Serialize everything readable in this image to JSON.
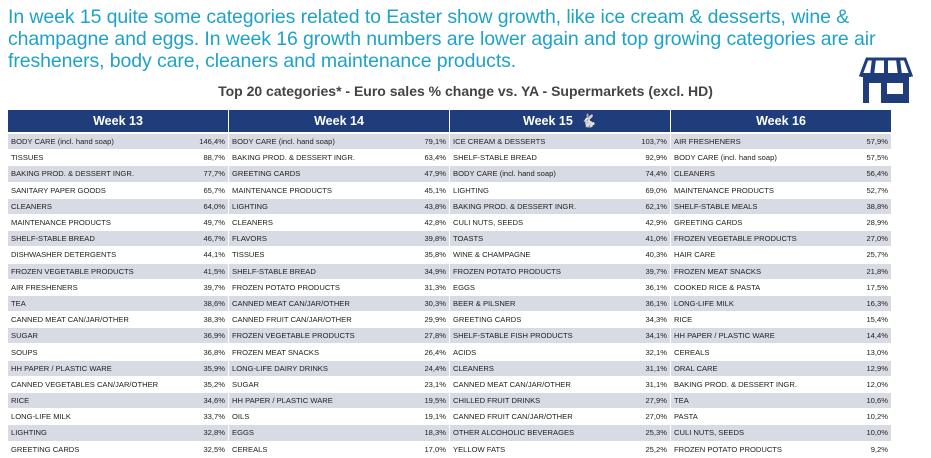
{
  "headline": "In week 15 quite some categories related to Easter show growth, like ice cream & desserts, wine & champagne and eggs. In week 16 growth numbers are lower again and top growing categories are air fresheners, body care, cleaners and maintenance products.",
  "subtitle": "Top 20 categories* - Euro sales % change vs. YA - Supermarkets (excl. HD)",
  "icons": {
    "store": "store-icon",
    "rabbit": "easter-bunny-icon"
  },
  "colors": {
    "headline": "#1ea3c8",
    "header_bg": "#1f3d7a",
    "row_alt": "#d9dbe4"
  },
  "weeks": [
    {
      "label": "Week 13",
      "rows": [
        {
          "category": "BODY CARE (incl. hand soap)",
          "value": "146,4%"
        },
        {
          "category": "TISSUES",
          "value": "88,7%"
        },
        {
          "category": "BAKING PROD. & DESSERT INGR.",
          "value": "77,7%"
        },
        {
          "category": "SANITARY PAPER GOODS",
          "value": "65,7%"
        },
        {
          "category": "CLEANERS",
          "value": "64,0%"
        },
        {
          "category": "MAINTENANCE PRODUCTS",
          "value": "49,7%"
        },
        {
          "category": "SHELF-STABLE BREAD",
          "value": "46,7%"
        },
        {
          "category": "DISHWASHER DETERGENTS",
          "value": "44,1%"
        },
        {
          "category": "FROZEN VEGETABLE PRODUCTS",
          "value": "41,5%"
        },
        {
          "category": "AIR FRESHENERS",
          "value": "39,7%"
        },
        {
          "category": "TEA",
          "value": "38,6%"
        },
        {
          "category": "CANNED MEAT CAN/JAR/OTHER",
          "value": "38,3%"
        },
        {
          "category": "SUGAR",
          "value": "36,9%"
        },
        {
          "category": "SOUPS",
          "value": "36,8%"
        },
        {
          "category": "HH PAPER / PLASTIC WARE",
          "value": "35,9%"
        },
        {
          "category": "CANNED VEGETABLES CAN/JAR/OTHER",
          "value": "35,2%"
        },
        {
          "category": "RICE",
          "value": "34,6%"
        },
        {
          "category": "LONG-LIFE MILK",
          "value": "33,7%"
        },
        {
          "category": "LIGHTING",
          "value": "32,8%"
        },
        {
          "category": "GREETING CARDS",
          "value": "32,5%"
        }
      ]
    },
    {
      "label": "Week 14",
      "rows": [
        {
          "category": "BODY CARE (incl. hand soap)",
          "value": "79,1%"
        },
        {
          "category": "BAKING PROD. & DESSERT INGR.",
          "value": "63,4%"
        },
        {
          "category": "GREETING CARDS",
          "value": "47,9%"
        },
        {
          "category": "MAINTENANCE PRODUCTS",
          "value": "45,1%"
        },
        {
          "category": "LIGHTING",
          "value": "43,8%"
        },
        {
          "category": "CLEANERS",
          "value": "42,8%"
        },
        {
          "category": "FLAVORS",
          "value": "39,8%"
        },
        {
          "category": "TISSUES",
          "value": "35,8%"
        },
        {
          "category": "SHELF-STABLE BREAD",
          "value": "34,9%"
        },
        {
          "category": "FROZEN POTATO PRODUCTS",
          "value": "31,3%"
        },
        {
          "category": "CANNED MEAT CAN/JAR/OTHER",
          "value": "30,3%"
        },
        {
          "category": "CANNED FRUIT CAN/JAR/OTHER",
          "value": "29,9%"
        },
        {
          "category": "FROZEN VEGETABLE PRODUCTS",
          "value": "27,8%"
        },
        {
          "category": "FROZEN MEAT SNACKS",
          "value": "26,4%"
        },
        {
          "category": "LONG-LIFE DAIRY DRINKS",
          "value": "24,4%"
        },
        {
          "category": "SUGAR",
          "value": "23,1%"
        },
        {
          "category": "HH PAPER / PLASTIC WARE",
          "value": "19,5%"
        },
        {
          "category": "OILS",
          "value": "19,1%"
        },
        {
          "category": "EGGS",
          "value": "18,3%"
        },
        {
          "category": "CEREALS",
          "value": "17,0%"
        }
      ]
    },
    {
      "label": "Week 15",
      "rows": [
        {
          "category": "ICE CREAM & DESSERTS",
          "value": "103,7%"
        },
        {
          "category": "SHELF-STABLE BREAD",
          "value": "92,9%"
        },
        {
          "category": "BODY CARE (incl. hand soap)",
          "value": "74,4%"
        },
        {
          "category": "LIGHTING",
          "value": "69,0%"
        },
        {
          "category": "BAKING PROD. & DESSERT INGR.",
          "value": "62,1%"
        },
        {
          "category": "CULI NUTS, SEEDS",
          "value": "42,9%"
        },
        {
          "category": "TOASTS",
          "value": "41,0%"
        },
        {
          "category": "WINE & CHAMPAGNE",
          "value": "40,3%"
        },
        {
          "category": "FROZEN POTATO PRODUCTS",
          "value": "39,7%"
        },
        {
          "category": "EGGS",
          "value": "36,1%"
        },
        {
          "category": "BEER & PILSNER",
          "value": "36,1%"
        },
        {
          "category": "GREETING CARDS",
          "value": "34,3%"
        },
        {
          "category": "SHELF-STABLE FISH PRODUCTS",
          "value": "34,1%"
        },
        {
          "category": "ACIDS",
          "value": "32,1%"
        },
        {
          "category": "CLEANERS",
          "value": "31,1%"
        },
        {
          "category": "CANNED MEAT CAN/JAR/OTHER",
          "value": "31,1%"
        },
        {
          "category": "CHILLED FRUIT DRINKS",
          "value": "27,9%"
        },
        {
          "category": "CANNED FRUIT CAN/JAR/OTHER",
          "value": "27,0%"
        },
        {
          "category": "OTHER ALCOHOLIC BEVERAGES",
          "value": "25,3%"
        },
        {
          "category": "YELLOW FATS",
          "value": "25,2%"
        }
      ]
    },
    {
      "label": "Week 16",
      "rows": [
        {
          "category": "AIR FRESHENERS",
          "value": "57,9%"
        },
        {
          "category": "BODY CARE (incl. hand soap)",
          "value": "57,5%"
        },
        {
          "category": "CLEANERS",
          "value": "56,4%"
        },
        {
          "category": "MAINTENANCE PRODUCTS",
          "value": "52,7%"
        },
        {
          "category": "SHELF-STABLE MEALS",
          "value": "38,8%"
        },
        {
          "category": "GREETING CARDS",
          "value": "28,9%"
        },
        {
          "category": "FROZEN VEGETABLE PRODUCTS",
          "value": "27,0%"
        },
        {
          "category": "HAIR CARE",
          "value": "25,7%"
        },
        {
          "category": "FROZEN MEAT SNACKS",
          "value": "21,8%"
        },
        {
          "category": "COOKED RICE & PASTA",
          "value": "17,5%"
        },
        {
          "category": "LONG-LIFE MILK",
          "value": "16,3%"
        },
        {
          "category": "RICE",
          "value": "15,4%"
        },
        {
          "category": "HH PAPER / PLASTIC WARE",
          "value": "14,4%"
        },
        {
          "category": "CEREALS",
          "value": "13,0%"
        },
        {
          "category": "ORAL CARE",
          "value": "12,9%"
        },
        {
          "category": "BAKING PROD. & DESSERT INGR.",
          "value": "12,0%"
        },
        {
          "category": "TEA",
          "value": "10,6%"
        },
        {
          "category": "PASTA",
          "value": "10,2%"
        },
        {
          "category": "CULI NUTS, SEEDS",
          "value": "10,0%"
        },
        {
          "category": "FROZEN POTATO PRODUCTS",
          "value": "9,2%"
        }
      ]
    }
  ]
}
